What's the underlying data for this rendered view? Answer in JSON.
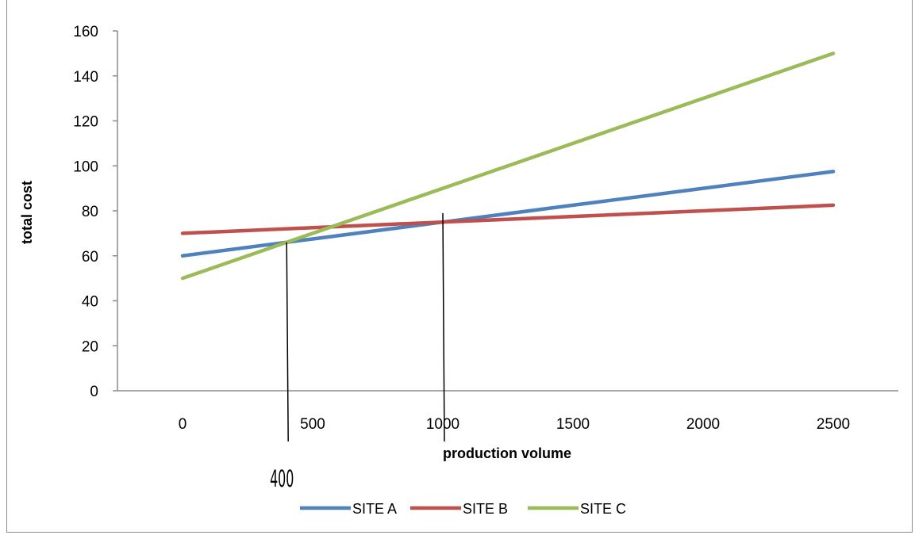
{
  "chart_data": {
    "type": "line",
    "title": "",
    "xlabel": "production volume",
    "ylabel": "total cost",
    "x": [
      0,
      500,
      1000,
      1500,
      2000,
      2500
    ],
    "xlim": [
      -250,
      2750
    ],
    "ylim": [
      0,
      160
    ],
    "x_ticks": [
      "0",
      "500",
      "1000",
      "1500",
      "2000",
      "2500"
    ],
    "y_ticks": [
      "0",
      "20",
      "40",
      "60",
      "80",
      "100",
      "120",
      "140",
      "160"
    ],
    "grid": false,
    "legend_position": "bottom",
    "series": [
      {
        "name": "SITE A",
        "color": "#4f81bd",
        "values": [
          60,
          67.5,
          75,
          82.5,
          90,
          97.5
        ]
      },
      {
        "name": "SITE B",
        "color": "#c0504d",
        "values": [
          70,
          72.5,
          75,
          77.5,
          80,
          82.5
        ]
      },
      {
        "name": "SITE C",
        "color": "#9bbb59",
        "values": [
          50,
          70,
          90,
          110,
          130,
          150
        ]
      }
    ],
    "annotations": [
      {
        "label": "400",
        "x": 400,
        "y_top": 66
      },
      {
        "label": "",
        "x": 1000,
        "y_top": 79
      }
    ]
  }
}
